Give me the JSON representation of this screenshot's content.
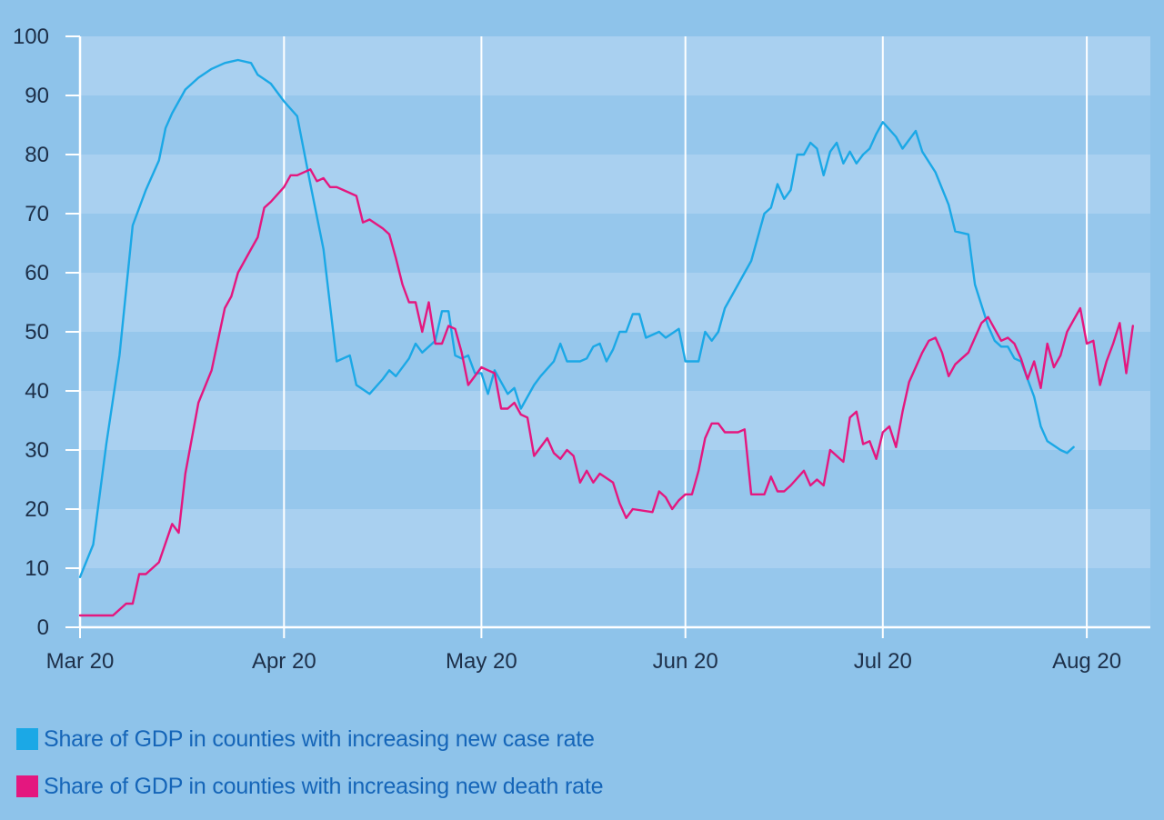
{
  "chart_data": {
    "type": "line",
    "y_range": [
      0,
      100
    ],
    "y_ticks": [
      0,
      10,
      20,
      30,
      40,
      50,
      60,
      70,
      80,
      90,
      100
    ],
    "x_tick_labels": [
      "Mar 20",
      "Apr 20",
      "May 20",
      "Jun 20",
      "Jul 20",
      "Aug 20"
    ],
    "grid": "vertical white lines at month starts; alternating horizontal bands",
    "legend_position": "bottom-left",
    "series": [
      {
        "name": "Share of GDP in counties with increasing new case rate",
        "color": "#1ba8e6",
        "points": [
          [
            0,
            8.5
          ],
          [
            2,
            14
          ],
          [
            4,
            31
          ],
          [
            6,
            46
          ],
          [
            8,
            68
          ],
          [
            10,
            74
          ],
          [
            12,
            79
          ],
          [
            13,
            84.5
          ],
          [
            14,
            87
          ],
          [
            16,
            91
          ],
          [
            18,
            93
          ],
          [
            20,
            94.5
          ],
          [
            22,
            95.5
          ],
          [
            24,
            96
          ],
          [
            26,
            95.5
          ],
          [
            27,
            93.5
          ],
          [
            29,
            92
          ],
          [
            31,
            89
          ],
          [
            33,
            86.5
          ],
          [
            35,
            75
          ],
          [
            37,
            64
          ],
          [
            39,
            45
          ],
          [
            41,
            46
          ],
          [
            42,
            41
          ],
          [
            44,
            39.5
          ],
          [
            46,
            42
          ],
          [
            47,
            43.5
          ],
          [
            48,
            42.5
          ],
          [
            50,
            45.5
          ],
          [
            51,
            48
          ],
          [
            52,
            46.5
          ],
          [
            54,
            48.5
          ],
          [
            55,
            53.5
          ],
          [
            56,
            53.5
          ],
          [
            57,
            46
          ],
          [
            58,
            45.5
          ],
          [
            59,
            46
          ],
          [
            60,
            43
          ],
          [
            61,
            43
          ],
          [
            62,
            39.5
          ],
          [
            63,
            43.5
          ],
          [
            65,
            39.5
          ],
          [
            66,
            40.5
          ],
          [
            67,
            37
          ],
          [
            69,
            41
          ],
          [
            70,
            42.5
          ],
          [
            72,
            45
          ],
          [
            73,
            48
          ],
          [
            74,
            45
          ],
          [
            76,
            45
          ],
          [
            77,
            45.5
          ],
          [
            78,
            47.5
          ],
          [
            79,
            48
          ],
          [
            80,
            45
          ],
          [
            81,
            47
          ],
          [
            82,
            50
          ],
          [
            83,
            50
          ],
          [
            84,
            53
          ],
          [
            85,
            53
          ],
          [
            86,
            49
          ],
          [
            88,
            50
          ],
          [
            89,
            49
          ],
          [
            91,
            50.5
          ],
          [
            92,
            45
          ],
          [
            94,
            45
          ],
          [
            95,
            50
          ],
          [
            96,
            48.5
          ],
          [
            97,
            50
          ],
          [
            98,
            54
          ],
          [
            100,
            58
          ],
          [
            101,
            60
          ],
          [
            102,
            62
          ],
          [
            103,
            66
          ],
          [
            104,
            70
          ],
          [
            105,
            71
          ],
          [
            106,
            75
          ],
          [
            107,
            72.5
          ],
          [
            108,
            74
          ],
          [
            109,
            80
          ],
          [
            110,
            80
          ],
          [
            111,
            82
          ],
          [
            112,
            81
          ],
          [
            113,
            76.5
          ],
          [
            114,
            80.5
          ],
          [
            115,
            82
          ],
          [
            116,
            78.5
          ],
          [
            117,
            80.5
          ],
          [
            118,
            78.5
          ],
          [
            119,
            80
          ],
          [
            120,
            81
          ],
          [
            121,
            83.5
          ],
          [
            122,
            85.5
          ],
          [
            124,
            83
          ],
          [
            125,
            81
          ],
          [
            127,
            84
          ],
          [
            128,
            80.5
          ],
          [
            130,
            77
          ],
          [
            132,
            71.5
          ],
          [
            133,
            67
          ],
          [
            135,
            66.5
          ],
          [
            136,
            58
          ],
          [
            138,
            51
          ],
          [
            139,
            48.5
          ],
          [
            140,
            47.5
          ],
          [
            141,
            47.5
          ],
          [
            142,
            45.5
          ],
          [
            143,
            45
          ],
          [
            145,
            39
          ],
          [
            146,
            34
          ],
          [
            147,
            31.5
          ],
          [
            149,
            30
          ],
          [
            150,
            29.5
          ],
          [
            151,
            30.5
          ]
        ]
      },
      {
        "name": "Share of GDP in counties with increasing new death rate",
        "color": "#e4177f",
        "points": [
          [
            0,
            2
          ],
          [
            5,
            2
          ],
          [
            7,
            4
          ],
          [
            8,
            4
          ],
          [
            9,
            9
          ],
          [
            10,
            9
          ],
          [
            12,
            11
          ],
          [
            14,
            17.5
          ],
          [
            15,
            16
          ],
          [
            16,
            26
          ],
          [
            18,
            38
          ],
          [
            20,
            43.5
          ],
          [
            22,
            54
          ],
          [
            23,
            56
          ],
          [
            24,
            60
          ],
          [
            26,
            64
          ],
          [
            27,
            66
          ],
          [
            28,
            71
          ],
          [
            29,
            72
          ],
          [
            31,
            74.5
          ],
          [
            32,
            76.5
          ],
          [
            33,
            76.5
          ],
          [
            35,
            77.5
          ],
          [
            36,
            75.5
          ],
          [
            37,
            76
          ],
          [
            38,
            74.5
          ],
          [
            39,
            74.5
          ],
          [
            40,
            74
          ],
          [
            42,
            73
          ],
          [
            43,
            68.5
          ],
          [
            44,
            69
          ],
          [
            46,
            67.5
          ],
          [
            47,
            66.5
          ],
          [
            48,
            62.5
          ],
          [
            49,
            58
          ],
          [
            50,
            55
          ],
          [
            51,
            55
          ],
          [
            52,
            50
          ],
          [
            53,
            55
          ],
          [
            54,
            48
          ],
          [
            55,
            48
          ],
          [
            56,
            51
          ],
          [
            57,
            50.5
          ],
          [
            58,
            46.5
          ],
          [
            59,
            41
          ],
          [
            61,
            44
          ],
          [
            62,
            43.5
          ],
          [
            63,
            43
          ],
          [
            64,
            37
          ],
          [
            65,
            37
          ],
          [
            66,
            38
          ],
          [
            67,
            36
          ],
          [
            68,
            35.5
          ],
          [
            69,
            29
          ],
          [
            71,
            32
          ],
          [
            72,
            29.5
          ],
          [
            73,
            28.5
          ],
          [
            74,
            30
          ],
          [
            75,
            29
          ],
          [
            76,
            24.5
          ],
          [
            77,
            26.5
          ],
          [
            78,
            24.5
          ],
          [
            79,
            26
          ],
          [
            81,
            24.5
          ],
          [
            82,
            21
          ],
          [
            83,
            18.5
          ],
          [
            84,
            20
          ],
          [
            87,
            19.5
          ],
          [
            88,
            23
          ],
          [
            89,
            22
          ],
          [
            90,
            20
          ],
          [
            91,
            21.5
          ],
          [
            92,
            22.5
          ],
          [
            93,
            22.5
          ],
          [
            94,
            26.5
          ],
          [
            95,
            32
          ],
          [
            96,
            34.5
          ],
          [
            97,
            34.5
          ],
          [
            98,
            33
          ],
          [
            100,
            33
          ],
          [
            101,
            33.5
          ],
          [
            102,
            22.5
          ],
          [
            103,
            22.5
          ],
          [
            104,
            22.5
          ],
          [
            105,
            25.5
          ],
          [
            106,
            23
          ],
          [
            107,
            23
          ],
          [
            108,
            24
          ],
          [
            110,
            26.5
          ],
          [
            111,
            24
          ],
          [
            112,
            25
          ],
          [
            113,
            24
          ],
          [
            114,
            30
          ],
          [
            115,
            29
          ],
          [
            116,
            28
          ],
          [
            117,
            35.5
          ],
          [
            118,
            36.5
          ],
          [
            119,
            31
          ],
          [
            120,
            31.5
          ],
          [
            121,
            28.5
          ],
          [
            122,
            33
          ],
          [
            123,
            34
          ],
          [
            124,
            30.5
          ],
          [
            125,
            36.5
          ],
          [
            126,
            41.5
          ],
          [
            128,
            46.5
          ],
          [
            129,
            48.5
          ],
          [
            130,
            49
          ],
          [
            131,
            46.5
          ],
          [
            132,
            42.5
          ],
          [
            133,
            44.5
          ],
          [
            134,
            45.5
          ],
          [
            135,
            46.5
          ],
          [
            136,
            49
          ],
          [
            137,
            51.5
          ],
          [
            138,
            52.5
          ],
          [
            139,
            50.5
          ],
          [
            140,
            48.5
          ],
          [
            141,
            49
          ],
          [
            142,
            48
          ],
          [
            143,
            45.5
          ],
          [
            144,
            42
          ],
          [
            145,
            45
          ],
          [
            146,
            40.5
          ],
          [
            147,
            48
          ],
          [
            148,
            44
          ],
          [
            149,
            46
          ],
          [
            150,
            50
          ],
          [
            151,
            52
          ],
          [
            152,
            54
          ],
          [
            153,
            48
          ],
          [
            154,
            48.5
          ],
          [
            155,
            41
          ],
          [
            156,
            45
          ],
          [
            157,
            48
          ],
          [
            158,
            51.5
          ],
          [
            159,
            43
          ],
          [
            160,
            51
          ]
        ]
      }
    ]
  }
}
